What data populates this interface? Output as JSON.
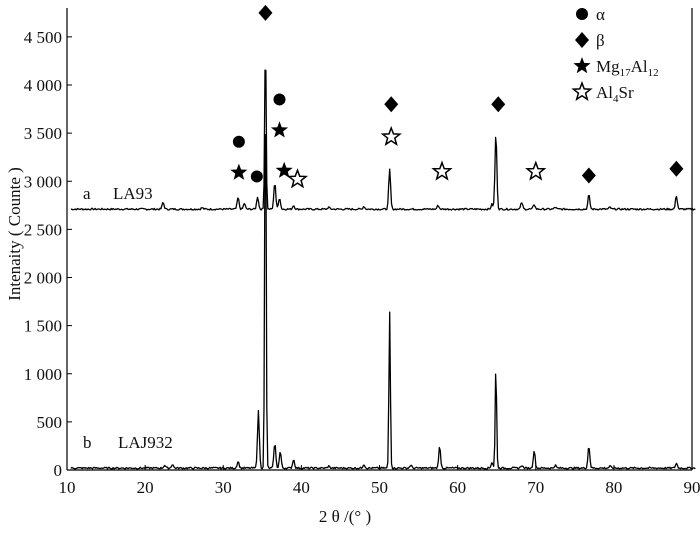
{
  "chart_data": {
    "type": "line",
    "xlabel": "2 θ /(°  )",
    "ylabel": "Intenaity ( Counte )",
    "xlim": [
      10,
      90
    ],
    "ylim": [
      0,
      4800
    ],
    "x_ticks": [
      "10",
      "20",
      "30",
      "40",
      "50",
      "60",
      "70",
      "80",
      "90"
    ],
    "x_tick_values": [
      10,
      20,
      30,
      40,
      50,
      60,
      70,
      80,
      90
    ],
    "y_ticks": [
      "0",
      "500",
      "1 000",
      "1 500",
      "2 000",
      "2 500",
      "3 000",
      "3 500",
      "4 000",
      "4 500"
    ],
    "y_tick_values": [
      0,
      500,
      1000,
      1500,
      2000,
      2500,
      3000,
      3500,
      4000,
      4500
    ],
    "grid": false,
    "legend_position": "top-right",
    "legend": [
      {
        "marker": "filled-circle",
        "label": "α"
      },
      {
        "marker": "filled-diamond",
        "label": "β"
      },
      {
        "marker": "filled-star",
        "label": "Mg17Al12",
        "label_main": "Mg",
        "sub1": "17",
        "mid": "Al",
        "sub2": "12"
      },
      {
        "marker": "hollow-star",
        "label": "Al4Sr",
        "label_main": "Al",
        "sub1": "4",
        "mid": "Sr",
        "sub2": ""
      }
    ],
    "series": [
      {
        "name": "LA93",
        "tag": "a",
        "baseline": 2710,
        "peaks": [
          {
            "x": 22.3,
            "y": 2780
          },
          {
            "x": 27.3,
            "y": 2725
          },
          {
            "x": 31.9,
            "y": 2830
          },
          {
            "x": 32.7,
            "y": 2770
          },
          {
            "x": 34.4,
            "y": 2840
          },
          {
            "x": 35.4,
            "y": 4500
          },
          {
            "x": 36.6,
            "y": 2990
          },
          {
            "x": 37.2,
            "y": 2830
          },
          {
            "x": 39.0,
            "y": 2750
          },
          {
            "x": 43.5,
            "y": 2730
          },
          {
            "x": 48.0,
            "y": 2740
          },
          {
            "x": 51.3,
            "y": 3120
          },
          {
            "x": 57.5,
            "y": 2750
          },
          {
            "x": 64.4,
            "y": 2760
          },
          {
            "x": 64.9,
            "y": 3500
          },
          {
            "x": 68.2,
            "y": 2780
          },
          {
            "x": 69.8,
            "y": 2760
          },
          {
            "x": 72.5,
            "y": 2730
          },
          {
            "x": 76.8,
            "y": 2860
          },
          {
            "x": 79.5,
            "y": 2730
          },
          {
            "x": 88.0,
            "y": 2850
          }
        ]
      },
      {
        "name": "LAJ932",
        "tag": "b",
        "baseline": 20,
        "peaks": [
          {
            "x": 22.5,
            "y": 50
          },
          {
            "x": 23.5,
            "y": 60
          },
          {
            "x": 31.9,
            "y": 90
          },
          {
            "x": 34.5,
            "y": 610
          },
          {
            "x": 35.4,
            "y": 4300
          },
          {
            "x": 36.6,
            "y": 280
          },
          {
            "x": 37.3,
            "y": 190
          },
          {
            "x": 39.0,
            "y": 110
          },
          {
            "x": 43.5,
            "y": 40
          },
          {
            "x": 48.0,
            "y": 60
          },
          {
            "x": 51.3,
            "y": 1640
          },
          {
            "x": 54.0,
            "y": 50
          },
          {
            "x": 57.7,
            "y": 240
          },
          {
            "x": 64.4,
            "y": 80
          },
          {
            "x": 64.9,
            "y": 1090
          },
          {
            "x": 68.2,
            "y": 50
          },
          {
            "x": 69.8,
            "y": 200
          },
          {
            "x": 72.5,
            "y": 50
          },
          {
            "x": 76.8,
            "y": 250
          },
          {
            "x": 79.5,
            "y": 40
          },
          {
            "x": 88.0,
            "y": 70
          }
        ]
      }
    ],
    "phase_markers": [
      {
        "phase": "β",
        "marker": "filled-diamond",
        "x": 35.4,
        "y": 4750
      },
      {
        "phase": "α",
        "marker": "filled-circle",
        "x": 32.0,
        "y": 3410
      },
      {
        "phase": "α",
        "marker": "filled-circle",
        "x": 34.3,
        "y": 3050
      },
      {
        "phase": "α",
        "marker": "filled-circle",
        "x": 37.2,
        "y": 3850
      },
      {
        "phase": "Mg17Al12",
        "marker": "filled-star",
        "x": 32.0,
        "y": 3090
      },
      {
        "phase": "Mg17Al12",
        "marker": "filled-star",
        "x": 37.2,
        "y": 3530
      },
      {
        "phase": "Mg17Al12",
        "marker": "filled-star",
        "x": 37.8,
        "y": 3110
      },
      {
        "phase": "Al4Sr",
        "marker": "hollow-star",
        "x": 39.5,
        "y": 3020
      },
      {
        "phase": "β",
        "marker": "filled-diamond",
        "x": 51.5,
        "y": 3800
      },
      {
        "phase": "Al4Sr",
        "marker": "hollow-star",
        "x": 51.5,
        "y": 3460
      },
      {
        "phase": "Al4Sr",
        "marker": "hollow-star",
        "x": 58.0,
        "y": 3100
      },
      {
        "phase": "β",
        "marker": "filled-diamond",
        "x": 65.2,
        "y": 3800
      },
      {
        "phase": "Al4Sr",
        "marker": "hollow-star",
        "x": 70.0,
        "y": 3100
      },
      {
        "phase": "β",
        "marker": "filled-diamond",
        "x": 76.8,
        "y": 3060
      },
      {
        "phase": "β",
        "marker": "filled-diamond",
        "x": 88.0,
        "y": 3130
      }
    ]
  }
}
